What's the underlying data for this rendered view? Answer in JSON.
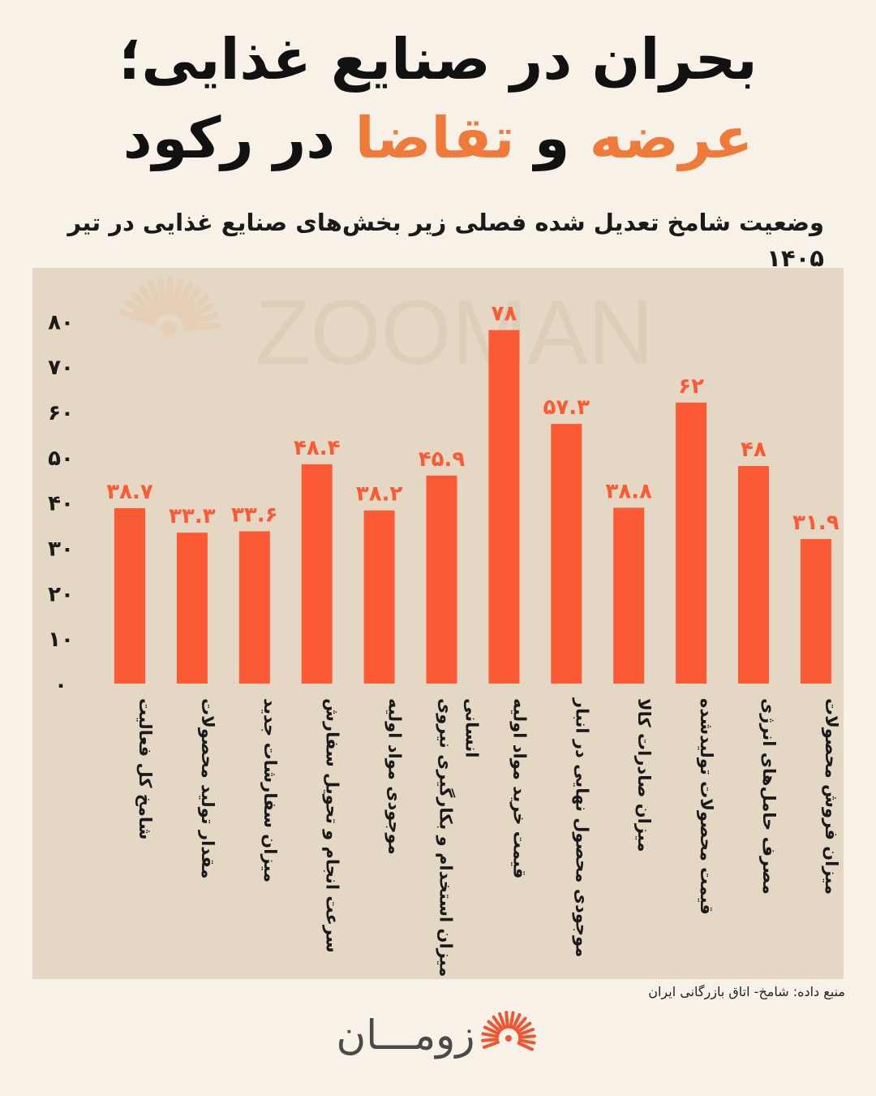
{
  "header": {
    "title_line1": "بحران در صنایع غذایی؛",
    "title_accent1": "عرضه",
    "title_conj": "و",
    "title_accent2": "تقاضا",
    "title_rest": "در رکود",
    "subtitle": "وضعیت شامخ تعدیل شده فصلی زیر بخش‌های صنایع غذایی در تیر ۱۴۰۵"
  },
  "colors": {
    "background": "#f8f1e7",
    "panel": "#e4d8c4",
    "bar": "#fb5a35",
    "label": "#fb5a35",
    "accent_text": "#f07a3a",
    "text": "#1a1a1a"
  },
  "chart_data": {
    "type": "bar",
    "categories": [
      "شامخ کل فعالیت",
      "مقدار تولید محصولات",
      "میزان سفارشات جدید",
      "سرعت انجام و تحویل سفارش",
      "موجودی مواد اولیه",
      "میزان استخدام و بکارگیری نیروی انسانی",
      "قیمت خرید مواد اولیه",
      "موجودی محصول نهایی در انبار",
      "میزان صادرات کالا",
      "قیمت محصولات تولیدشده",
      "مصرف حامل‌های انرژی",
      "میزان فروش محصولات"
    ],
    "values": [
      38.7,
      33.3,
      33.6,
      48.4,
      38.2,
      45.9,
      78,
      57.3,
      38.8,
      62,
      48,
      31.9
    ],
    "value_labels": [
      "۳۸.۷",
      "۳۳.۳",
      "۳۳.۶",
      "۴۸.۴",
      "۳۸.۲",
      "۴۵.۹",
      "۷۸",
      "۵۷.۳",
      "۳۸.۸",
      "۶۲",
      "۴۸",
      "۳۱.۹"
    ],
    "y_ticks": [
      0,
      10,
      20,
      30,
      40,
      50,
      60,
      70,
      80
    ],
    "y_tick_labels": [
      "۰",
      "۱۰",
      "۲۰",
      "۳۰",
      "۴۰",
      "۵۰",
      "۶۰",
      "۷۰",
      "۸۰"
    ],
    "ylim": [
      0,
      80
    ],
    "grid": false,
    "legend": "none"
  },
  "watermark": "ZOOMAN",
  "footer": {
    "source": "منبع داده: شامخ-  اتاق بازرگانی ایران",
    "logo_text": "زومـــان"
  }
}
